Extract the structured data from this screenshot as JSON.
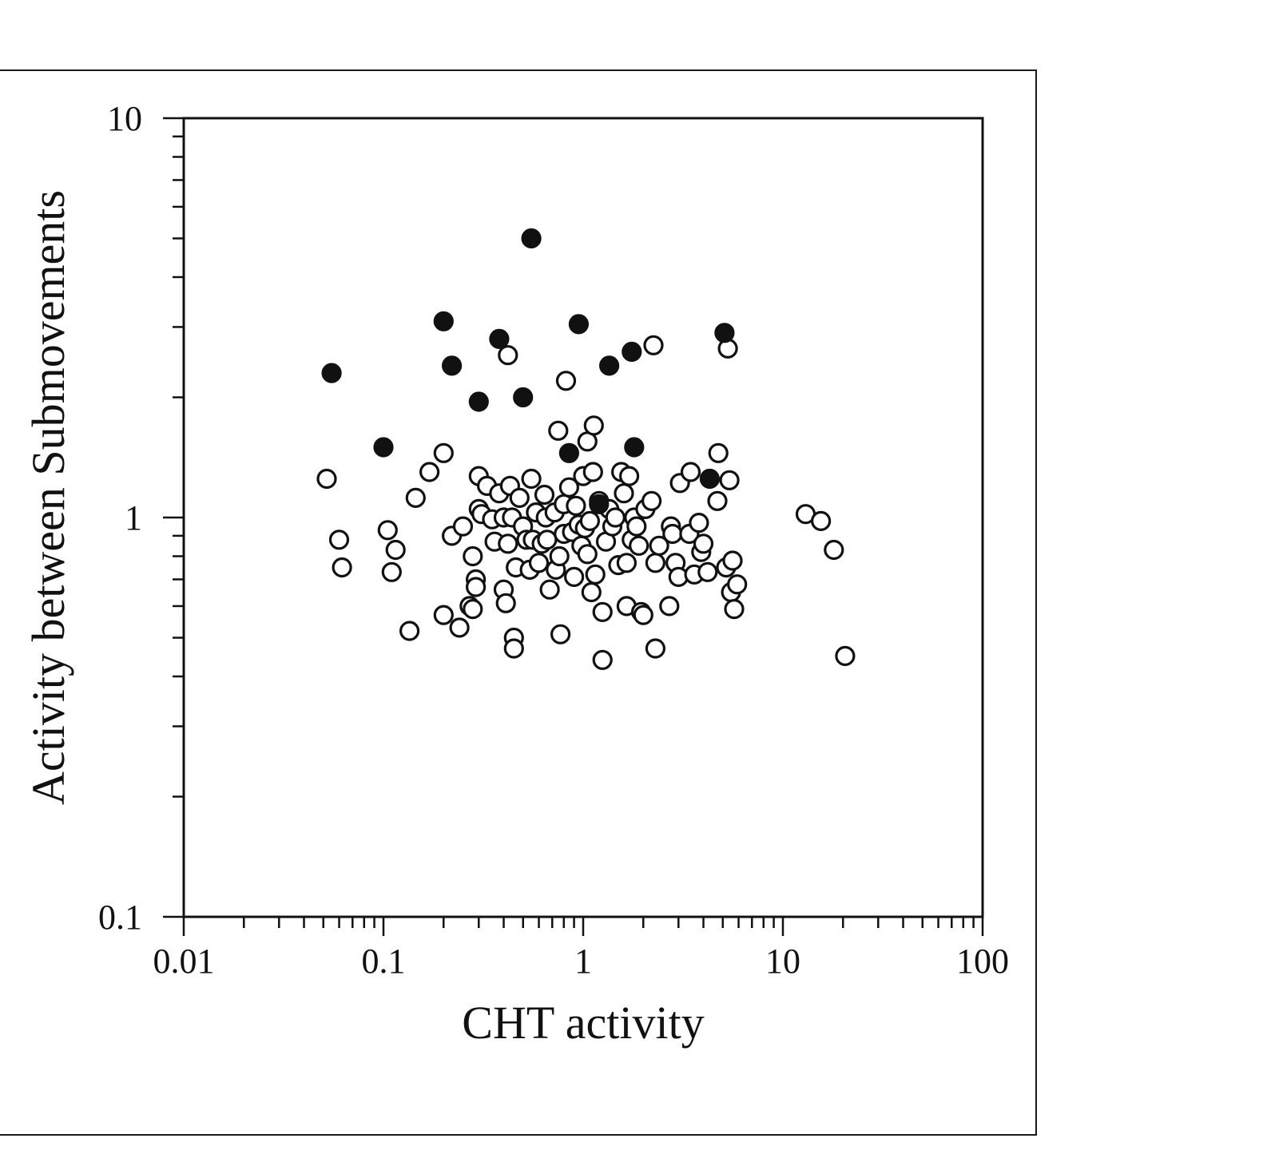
{
  "chart_data": {
    "type": "scatter",
    "title": "",
    "xlabel": "CHT activity",
    "ylabel": "Activity between Submovements",
    "x_scale": "log",
    "y_scale": "log",
    "xlim": [
      0.01,
      100
    ],
    "ylim": [
      0.1,
      10
    ],
    "x_ticks": [
      "0.01",
      "0.1",
      "1",
      "10",
      "100"
    ],
    "y_ticks": [
      "0.1",
      "1",
      "10"
    ],
    "grid": false,
    "legend": "none",
    "colors": {
      "axis": "#111111",
      "open_fill": "#ffffff",
      "filled": "#111111"
    },
    "series": [
      {
        "marker": "filled-circle",
        "points": [
          [
            0.055,
            2.3
          ],
          [
            0.1,
            1.5
          ],
          [
            0.2,
            3.1
          ],
          [
            0.22,
            2.4
          ],
          [
            0.3,
            1.95
          ],
          [
            0.38,
            2.8
          ],
          [
            0.5,
            2.0
          ],
          [
            0.55,
            5.0
          ],
          [
            0.85,
            1.45
          ],
          [
            0.95,
            3.05
          ],
          [
            1.35,
            2.4
          ],
          [
            1.75,
            2.6
          ],
          [
            1.8,
            1.5
          ],
          [
            5.1,
            2.9
          ],
          [
            4.3,
            1.25
          ],
          [
            1.2,
            1.08
          ]
        ]
      },
      {
        "marker": "open-circle",
        "points": [
          [
            0.052,
            1.25
          ],
          [
            0.06,
            0.88
          ],
          [
            0.062,
            0.75
          ],
          [
            0.105,
            0.93
          ],
          [
            0.11,
            0.73
          ],
          [
            0.115,
            0.83
          ],
          [
            0.135,
            0.52
          ],
          [
            0.145,
            1.12
          ],
          [
            0.17,
            1.3
          ],
          [
            0.2,
            0.57
          ],
          [
            0.2,
            1.45
          ],
          [
            0.22,
            0.9
          ],
          [
            0.24,
            0.53
          ],
          [
            0.25,
            0.95
          ],
          [
            0.27,
            0.6
          ],
          [
            0.28,
            0.59
          ],
          [
            0.28,
            0.8
          ],
          [
            0.29,
            0.7
          ],
          [
            0.29,
            0.67
          ],
          [
            0.3,
            1.05
          ],
          [
            0.3,
            1.27
          ],
          [
            0.31,
            1.02
          ],
          [
            0.33,
            1.2
          ],
          [
            0.35,
            0.99
          ],
          [
            0.36,
            0.87
          ],
          [
            0.38,
            1.15
          ],
          [
            0.4,
            1.0
          ],
          [
            0.4,
            0.66
          ],
          [
            0.41,
            0.61
          ],
          [
            0.42,
            0.86
          ],
          [
            0.42,
            2.55
          ],
          [
            0.43,
            1.2
          ],
          [
            0.44,
            1.0
          ],
          [
            0.45,
            0.5
          ],
          [
            0.45,
            0.47
          ],
          [
            0.46,
            0.75
          ],
          [
            0.48,
            1.12
          ],
          [
            0.5,
            0.95
          ],
          [
            0.52,
            0.88
          ],
          [
            0.54,
            0.74
          ],
          [
            0.55,
            1.25
          ],
          [
            0.56,
            0.88
          ],
          [
            0.58,
            1.03
          ],
          [
            0.6,
            0.77
          ],
          [
            0.62,
            0.86
          ],
          [
            0.64,
            1.14
          ],
          [
            0.65,
            1.0
          ],
          [
            0.66,
            0.88
          ],
          [
            0.68,
            0.66
          ],
          [
            0.72,
            1.03
          ],
          [
            0.73,
            0.74
          ],
          [
            0.75,
            1.65
          ],
          [
            0.76,
            0.8
          ],
          [
            0.77,
            0.51
          ],
          [
            0.8,
            0.91
          ],
          [
            0.8,
            1.08
          ],
          [
            0.82,
            2.2
          ],
          [
            0.85,
            1.19
          ],
          [
            0.88,
            0.92
          ],
          [
            0.9,
            0.71
          ],
          [
            0.92,
            1.07
          ],
          [
            0.95,
            0.96
          ],
          [
            0.98,
            0.85
          ],
          [
            1.0,
            1.27
          ],
          [
            1.02,
            0.94
          ],
          [
            1.05,
            0.81
          ],
          [
            1.05,
            1.55
          ],
          [
            1.08,
            0.98
          ],
          [
            1.1,
            0.65
          ],
          [
            1.12,
            1.3
          ],
          [
            1.13,
            1.7
          ],
          [
            1.15,
            0.72
          ],
          [
            1.2,
            1.1
          ],
          [
            1.25,
            0.58
          ],
          [
            1.25,
            0.44
          ],
          [
            1.3,
            0.87
          ],
          [
            1.35,
            1.05
          ],
          [
            1.4,
            0.95
          ],
          [
            1.45,
            1.0
          ],
          [
            1.5,
            0.76
          ],
          [
            1.55,
            1.3
          ],
          [
            1.6,
            1.15
          ],
          [
            1.65,
            0.6
          ],
          [
            1.65,
            0.77
          ],
          [
            1.7,
            1.27
          ],
          [
            1.75,
            0.88
          ],
          [
            1.8,
            1.0
          ],
          [
            1.85,
            0.95
          ],
          [
            1.9,
            0.85
          ],
          [
            1.95,
            0.58
          ],
          [
            2.0,
            0.57
          ],
          [
            2.05,
            1.05
          ],
          [
            2.2,
            1.1
          ],
          [
            2.25,
            2.7
          ],
          [
            2.3,
            0.77
          ],
          [
            2.3,
            0.47
          ],
          [
            2.4,
            0.85
          ],
          [
            2.7,
            0.6
          ],
          [
            2.75,
            0.95
          ],
          [
            2.8,
            0.91
          ],
          [
            2.9,
            0.77
          ],
          [
            3.0,
            0.71
          ],
          [
            3.05,
            1.22
          ],
          [
            3.4,
            0.91
          ],
          [
            3.45,
            1.3
          ],
          [
            3.6,
            0.72
          ],
          [
            3.8,
            0.97
          ],
          [
            3.9,
            0.82
          ],
          [
            4.0,
            0.86
          ],
          [
            4.2,
            0.73
          ],
          [
            4.7,
            1.1
          ],
          [
            4.75,
            1.45
          ],
          [
            5.2,
            0.75
          ],
          [
            5.3,
            2.65
          ],
          [
            5.4,
            1.24
          ],
          [
            5.5,
            0.65
          ],
          [
            5.6,
            0.78
          ],
          [
            5.7,
            0.59
          ],
          [
            5.9,
            0.68
          ],
          [
            13.0,
            1.02
          ],
          [
            15.5,
            0.98
          ],
          [
            18.0,
            0.83
          ],
          [
            20.5,
            0.45
          ]
        ]
      }
    ]
  }
}
